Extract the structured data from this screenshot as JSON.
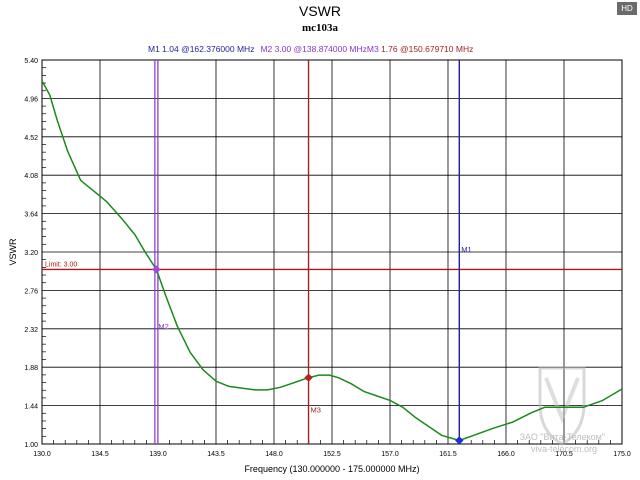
{
  "badge": "HD",
  "colors": {
    "curve": "#1a8a1a",
    "limit": "#b01515",
    "m1": "#1f1f9e",
    "m2": "#8a35c8",
    "m3": "#9e2222",
    "m2_point": "#a844e6",
    "m3_point": "#b52323",
    "m1_point": "#1a2be0",
    "grid": "#000000",
    "watermark": "#9a9a9a"
  },
  "chart_data": {
    "type": "line",
    "title": "VSWR",
    "subtitle": "mc103a",
    "xlabel": "Frequency (130.000000 - 175.000000 MHz)",
    "ylabel": "VSWR",
    "xlim": [
      130.0,
      175.0
    ],
    "ylim": [
      1.0,
      5.4
    ],
    "x_ticks": [
      "130.0",
      "134.5",
      "139.0",
      "143.5",
      "148.0",
      "152.5",
      "157.0",
      "161.5",
      "166.0",
      "170.5",
      "175.0"
    ],
    "y_ticks": [
      "1.00",
      "1.44",
      "1.88",
      "2.32",
      "2.76",
      "3.20",
      "3.64",
      "4.08",
      "4.52",
      "4.96",
      "5.40"
    ],
    "grid": true,
    "limit": {
      "label": "Limit: 3.00",
      "value": 3.0
    },
    "marker_readout": {
      "m1": "M1   1.04 @162.376000 MHz",
      "m2": "M2   3.00 @138.874000 MHzM3",
      "m3": "   1.76 @150.679710 MHz"
    },
    "markers": [
      {
        "name": "M1",
        "freq": 162.376,
        "value": 1.04,
        "label_vswr": 3.2
      },
      {
        "name": "M2",
        "freq": 138.874,
        "value": 3.0,
        "label_vswr": 2.32
      },
      {
        "name": "M3",
        "freq": 150.67971,
        "value": 1.76,
        "label_vswr": 1.36
      }
    ],
    "series": [
      {
        "x": [
          130.0,
          130.6,
          131.2,
          132.0,
          133.0,
          134.0,
          135.0,
          136.2,
          137.2,
          138.0,
          138.874,
          139.6,
          140.5,
          141.5,
          142.5,
          143.5,
          144.5,
          145.5,
          146.5,
          147.5,
          148.5,
          149.5,
          150.679,
          151.5,
          152.3,
          153.0,
          154.0,
          155.0,
          156.0,
          157.0,
          158.0,
          159.0,
          160.0,
          161.0,
          162.376,
          163.5,
          165.0,
          166.5,
          168.0,
          169.0,
          170.5,
          172.0,
          173.5,
          175.0
        ],
        "values": [
          5.16,
          5.0,
          4.7,
          4.35,
          4.02,
          3.9,
          3.78,
          3.58,
          3.4,
          3.2,
          3.0,
          2.7,
          2.35,
          2.05,
          1.85,
          1.72,
          1.66,
          1.64,
          1.62,
          1.62,
          1.65,
          1.7,
          1.76,
          1.79,
          1.79,
          1.76,
          1.69,
          1.6,
          1.55,
          1.5,
          1.42,
          1.3,
          1.2,
          1.1,
          1.04,
          1.1,
          1.18,
          1.25,
          1.36,
          1.42,
          1.42,
          1.42,
          1.5,
          1.63
        ]
      }
    ]
  },
  "watermark": {
    "company": "ЗАО \"Вита-Телеком\"",
    "site": "viva-telecom.org"
  }
}
